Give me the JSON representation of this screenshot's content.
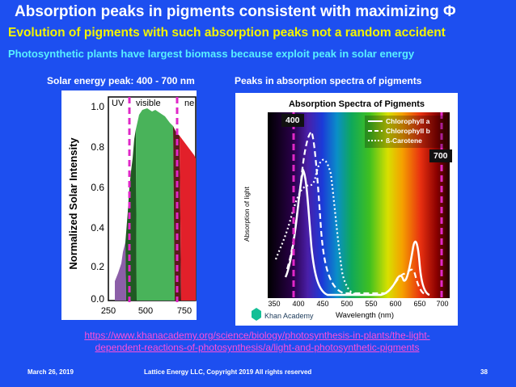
{
  "title": "Absorption peaks in pigments consistent with maximizing Φ",
  "subtitle1": "Evolution of pigments with such absorption peaks not a random accident",
  "subtitle2": "Photosynthetic plants have largest biomass because exploit peak in solar energy",
  "left_caption": "Solar energy peak: 400 - 700 nm",
  "right_caption": "Peaks in absorption spectra of pigments",
  "link_text": "https://www.khanacademy.org/science/biology/photosynthesis-in-plants/the-light-dependent-reactions-of-photosynthesis/a/light-and-photosynthetic-pigments",
  "footer": {
    "date": "March 26, 2019",
    "copyright": "Lattice Energy LLC, Copyright 2019  All rights reserved",
    "page": "38"
  },
  "solar_chart": {
    "ylabel": "Normalized Solar Intensity",
    "band_labels": [
      "UV",
      "visible",
      "ne"
    ],
    "yticks": [
      "1.0",
      "0.8",
      "0.6",
      "0.4",
      "0.2",
      "0.0"
    ],
    "xticks": [
      "250",
      "500",
      "750"
    ]
  },
  "absorption_chart": {
    "title": "Absorption Spectra of Pigments",
    "ylabel": "Absorption of light",
    "xlabel": "Wavelength (nm)",
    "xticks": [
      "350",
      "400",
      "450",
      "500",
      "550",
      "600",
      "650",
      "700"
    ],
    "legend": [
      "Chlorophyll a",
      "Chlorophyll b",
      "ß-Carotene"
    ],
    "marker_400": "400",
    "marker_700": "700",
    "logo": "Khan Academy"
  }
}
